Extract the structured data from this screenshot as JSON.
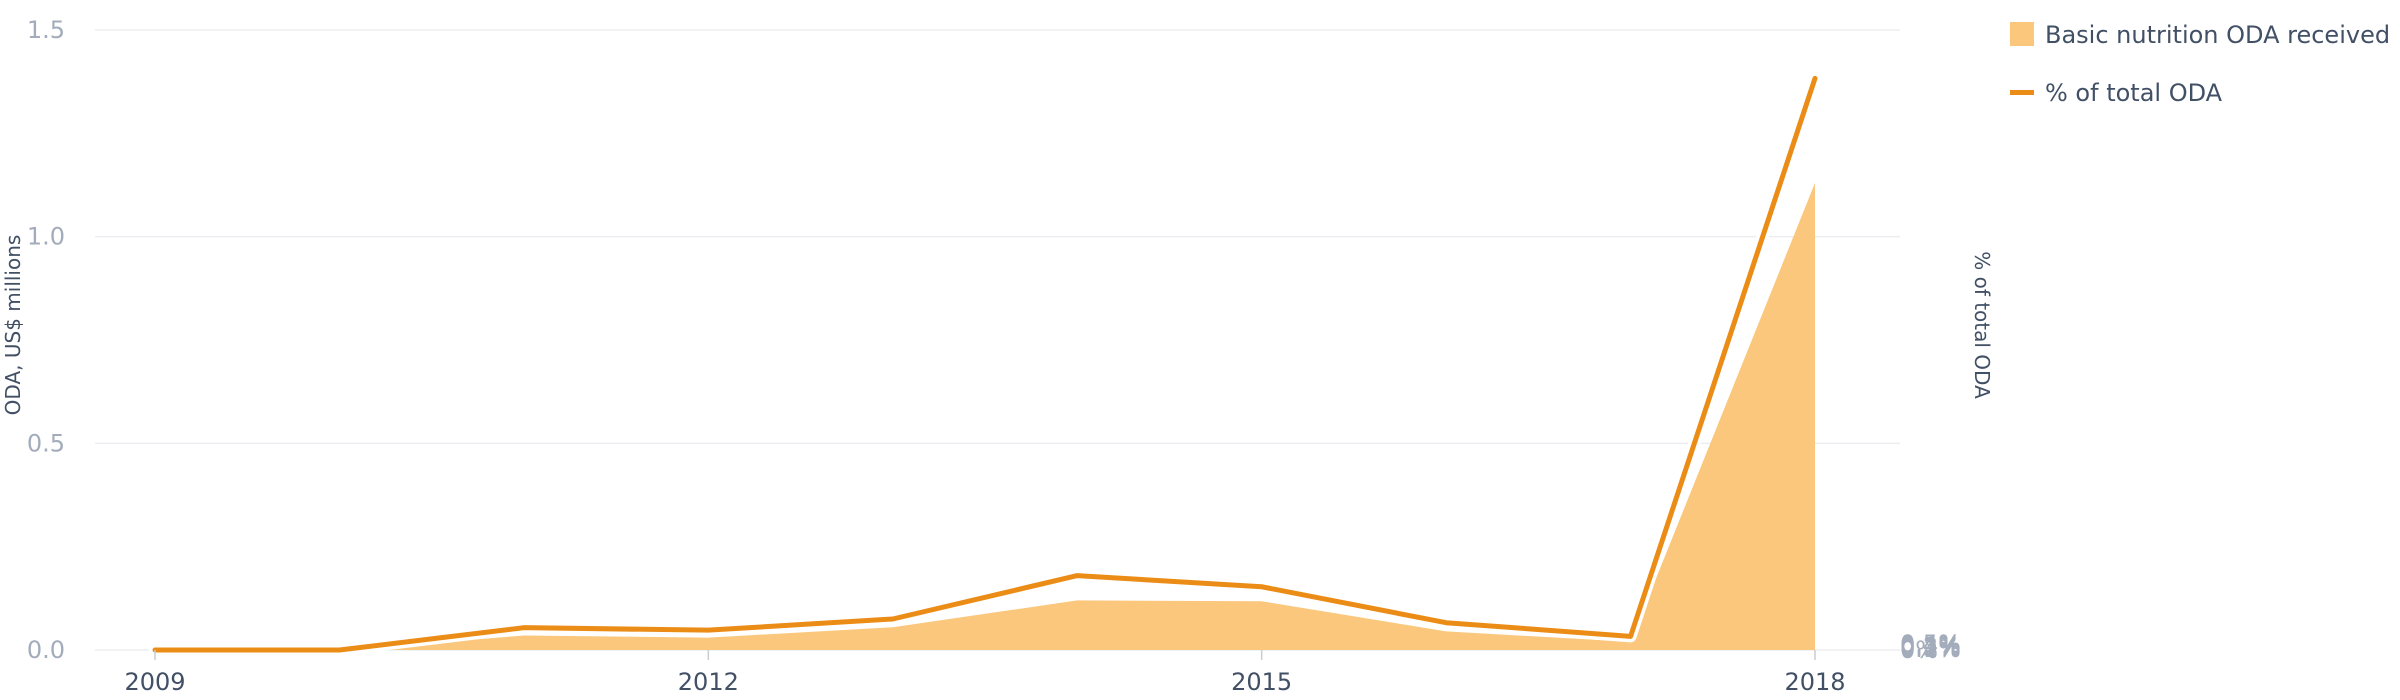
{
  "chart_data": {
    "type": "area",
    "x": [
      2009,
      2010,
      2011,
      2012,
      2013,
      2014,
      2015,
      2016,
      2017,
      2018
    ],
    "x_tick_labels": [
      "2009",
      "2012",
      "2015",
      "2018"
    ],
    "series": [
      {
        "name": "Basic nutrition ODA received",
        "type": "area",
        "axis": "left",
        "color": "#fac77d",
        "values": [
          0.0,
          0.0,
          0.035,
          0.03,
          0.055,
          0.12,
          0.118,
          0.045,
          0.02,
          1.13
        ]
      },
      {
        "name": "% of total ODA",
        "type": "line",
        "axis": "right",
        "color": "#eb8c16",
        "values": [
          0.0,
          0.0,
          0.018,
          0.016,
          0.025,
          0.06,
          0.051,
          0.022,
          0.011,
          0.461
        ]
      }
    ],
    "left_axis": {
      "label": "ODA, US$ millions",
      "range": [
        0,
        1.5
      ],
      "ticks": [
        "0.0",
        "0.5",
        "1.0",
        "1.5"
      ]
    },
    "right_axis": {
      "label": "% of total ODA",
      "range": [
        0,
        0.5
      ],
      "ticks": [
        "0%",
        "0.1%",
        "0.2%",
        "0.3%",
        "0.4%",
        "0.5%"
      ]
    },
    "grid": true,
    "legend_position": "top-right"
  }
}
